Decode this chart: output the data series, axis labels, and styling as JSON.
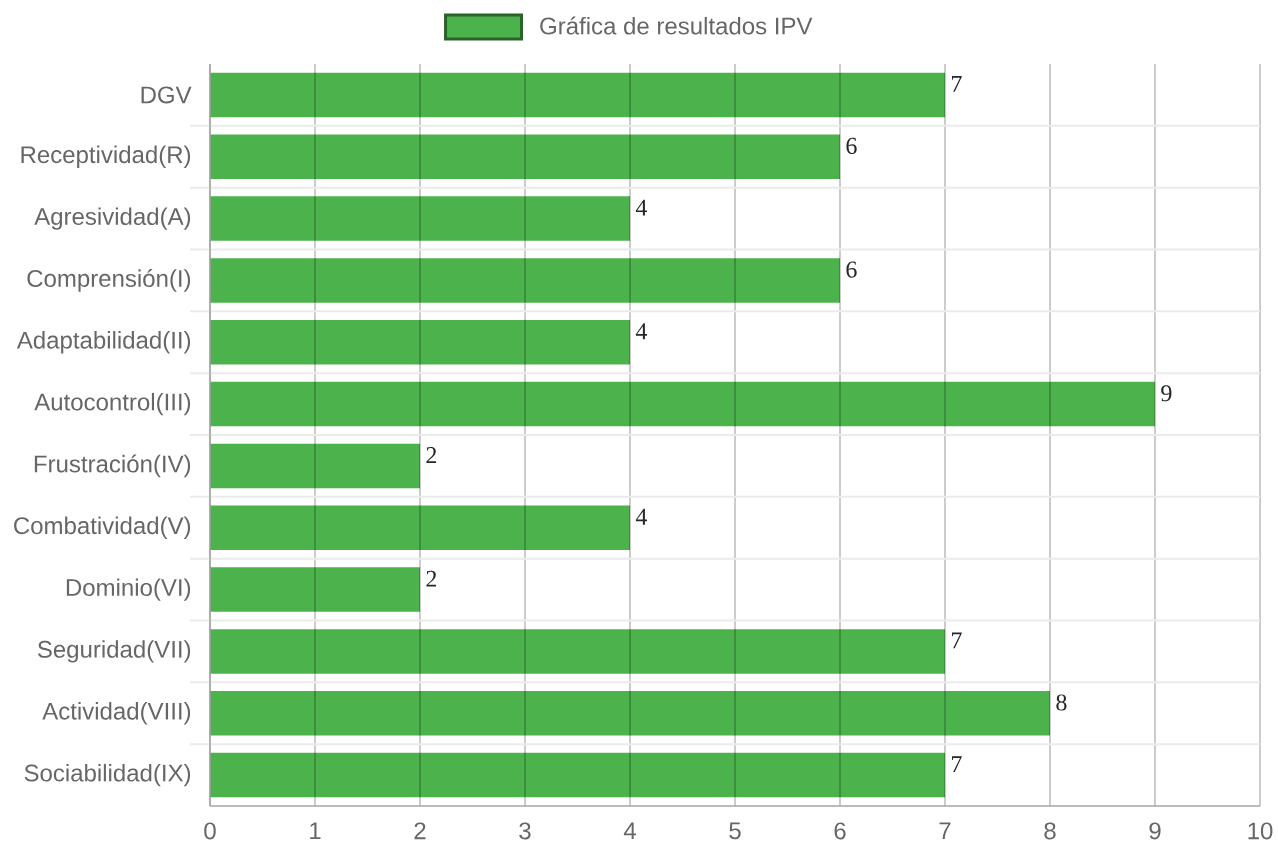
{
  "chart_data": {
    "type": "bar",
    "orientation": "horizontal",
    "categories": [
      "DGV",
      "Receptividad(R)",
      "Agresividad(A)",
      "Comprensión(I)",
      "Adaptabilidad(II)",
      "Autocontrol(III)",
      "Frustración(IV)",
      "Combatividad(V)",
      "Dominio(VI)",
      "Seguridad(VII)",
      "Actividad(VIII)",
      "Sociabilidad(IX)"
    ],
    "series": [
      {
        "name": "Gráfica de resultados IPV",
        "color": "#4cb24c",
        "values": [
          7,
          6,
          4,
          6,
          4,
          9,
          2,
          4,
          2,
          7,
          8,
          7
        ]
      }
    ],
    "xlim": [
      0,
      10
    ],
    "xticks": [
      0,
      1,
      2,
      3,
      4,
      5,
      6,
      7,
      8,
      9,
      10
    ],
    "grid": true,
    "legend": "top",
    "data_labels": true
  }
}
